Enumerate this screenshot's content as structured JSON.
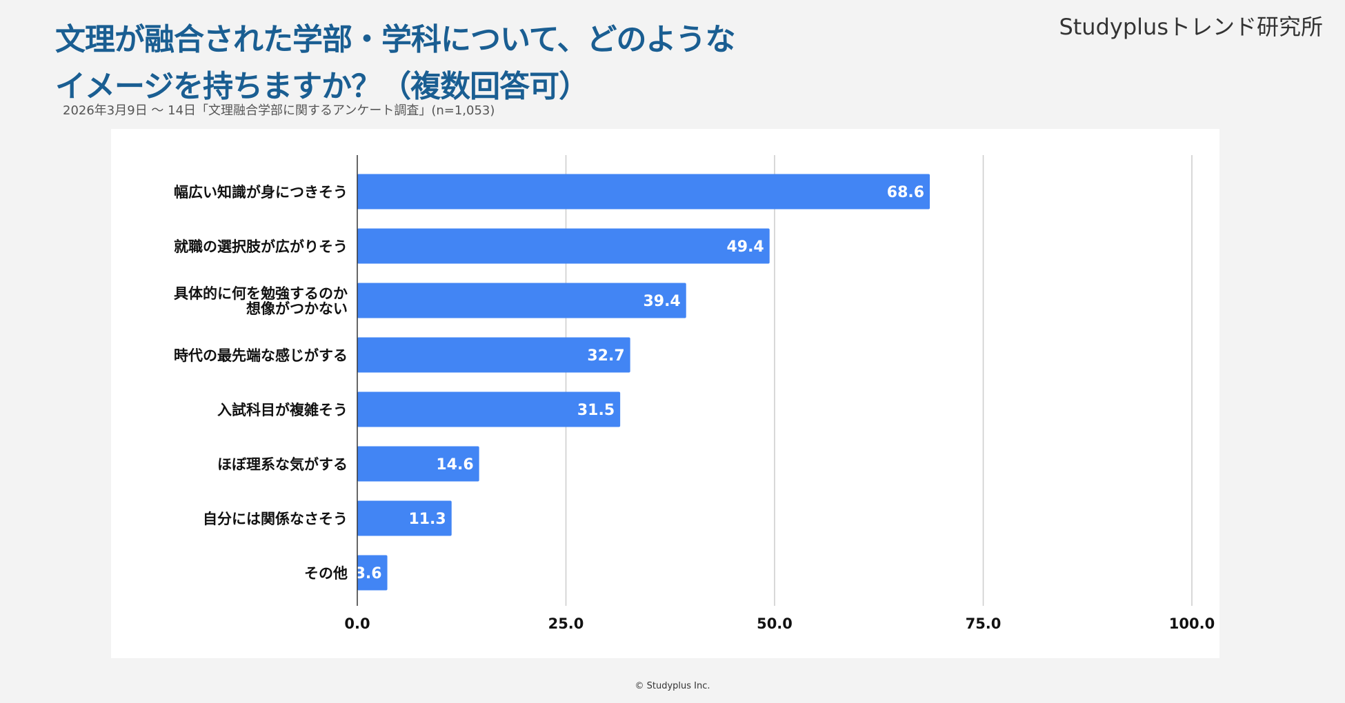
{
  "header": {
    "title_line1": "文理が融合された学部・学科について、どのような",
    "title_line2": "イメージを持ちますか？（複数回答可）",
    "subtitle": "2026年3月9日 〜 14日「文理融合学部に関するアンケート調査」(n=1,053)",
    "brand": "Studyplusトレンド研究所"
  },
  "footer": {
    "copyright": "© Studyplus Inc."
  },
  "colors": {
    "bar": "#4285f4",
    "grid": "#cccccc",
    "axis": "#333333",
    "title": "#1a5e92"
  },
  "chart_data": {
    "type": "bar",
    "orientation": "horizontal",
    "categories": [
      [
        "幅広い知識が身につきそう"
      ],
      [
        "就職の選択肢が広がりそう"
      ],
      [
        "具体的に何を勉強するのか",
        "想像がつかない"
      ],
      [
        "時代の最先端な感じがする"
      ],
      [
        "入試科目が複雑そう"
      ],
      [
        "ほぼ理系な気がする"
      ],
      [
        "自分には関係なさそう"
      ],
      [
        "その他"
      ]
    ],
    "values": [
      68.6,
      49.4,
      39.4,
      32.7,
      31.5,
      14.6,
      11.3,
      3.6
    ],
    "data_labels": [
      "68.6",
      "49.4",
      "39.4",
      "32.7",
      "31.5",
      "14.6",
      "11.3",
      "3.6"
    ],
    "xlim": [
      0,
      100
    ],
    "xticks": [
      0,
      25,
      50,
      75,
      100
    ],
    "xtick_labels": [
      "0.0",
      "25.0",
      "50.0",
      "75.0",
      "100.0"
    ],
    "grid": true,
    "legend": "none"
  }
}
